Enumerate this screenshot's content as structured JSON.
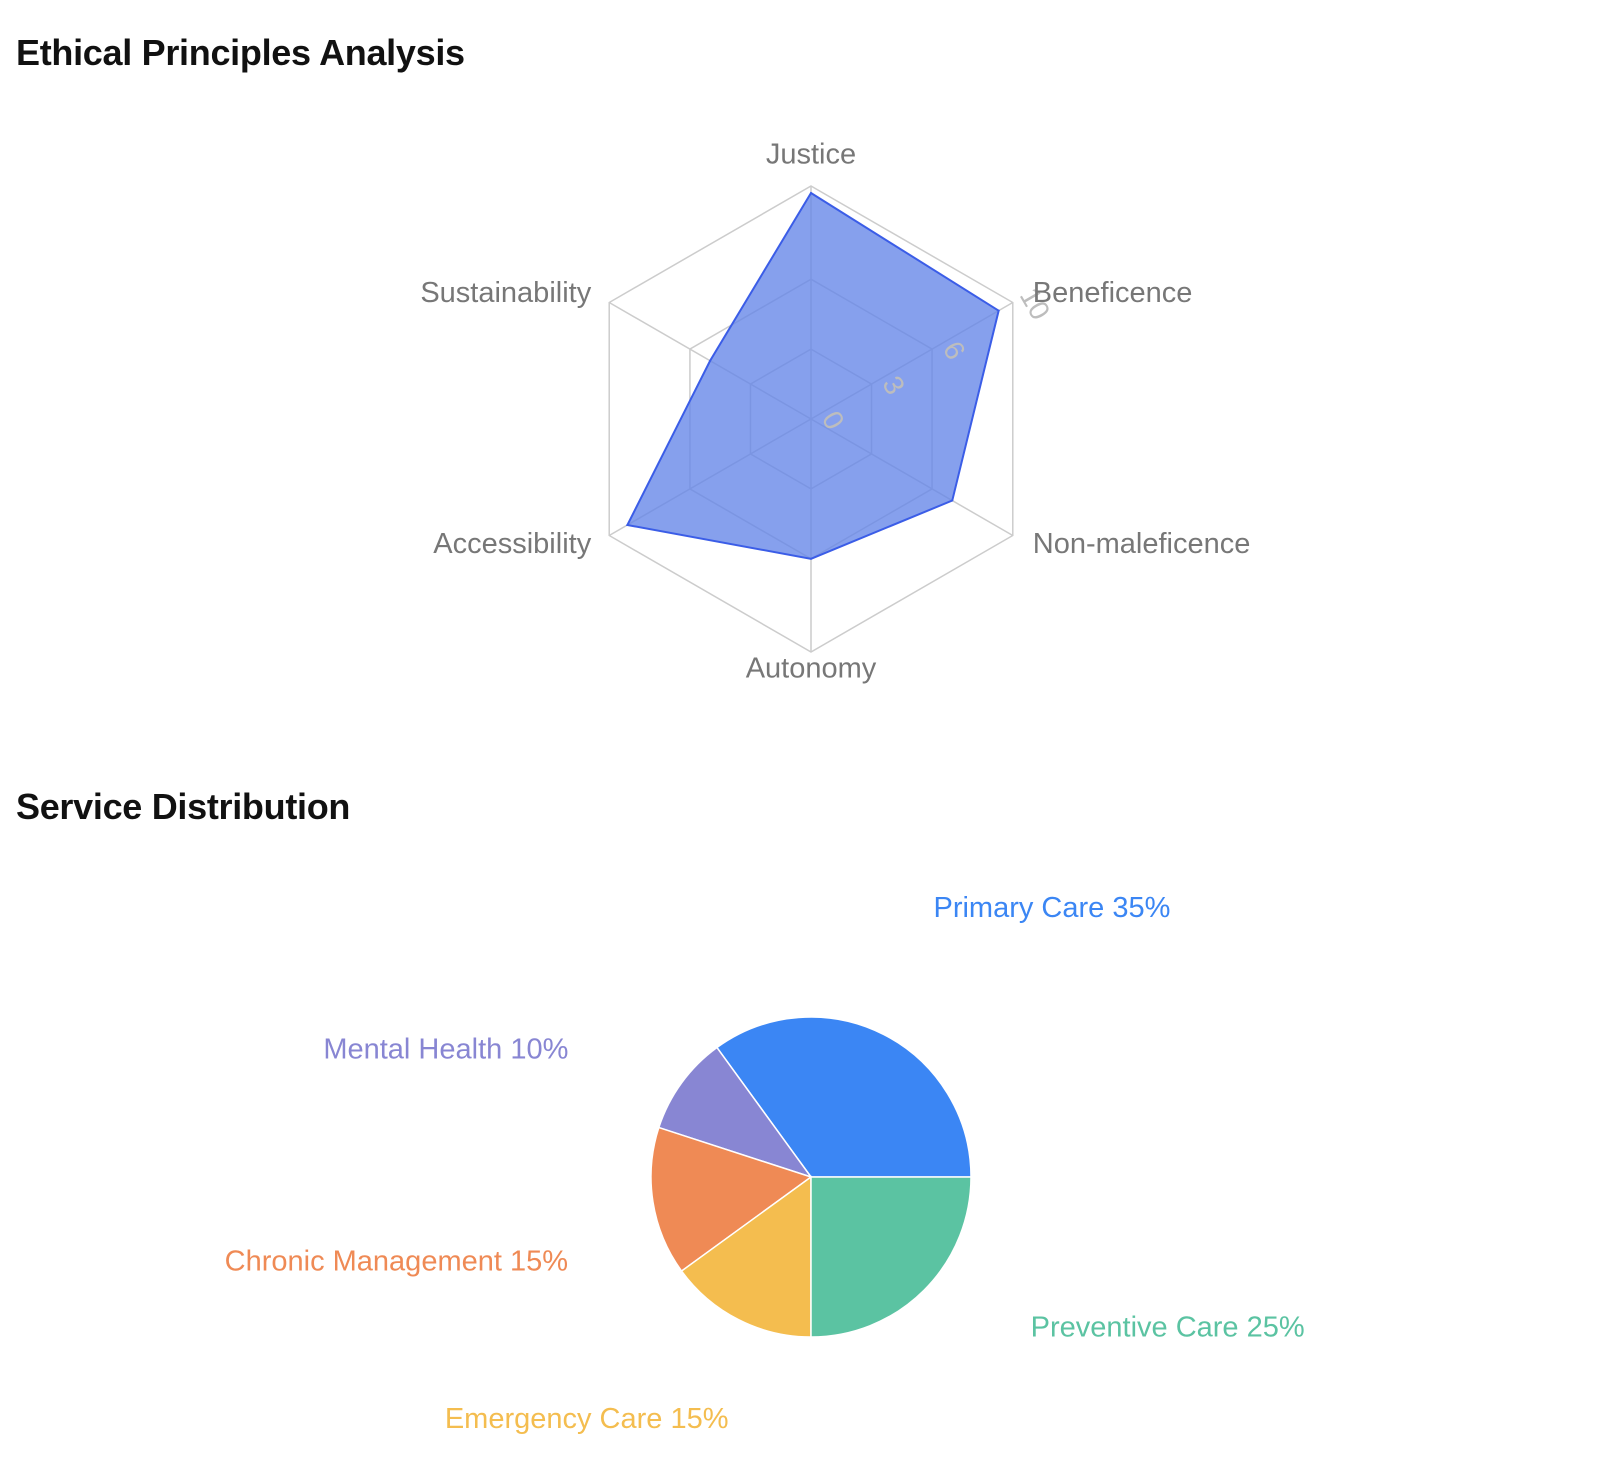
{
  "sections": {
    "radar_title": "Ethical Principles Analysis",
    "pie_title": "Service Distribution"
  },
  "chart_data": [
    {
      "type": "radar",
      "title": "Ethical Principles Analysis",
      "categories": [
        "Justice",
        "Beneficence",
        "Non-maleficence",
        "Autonomy",
        "Accessibility",
        "Sustainability"
      ],
      "values": [
        9.7,
        9.3,
        7.0,
        6.0,
        9.1,
        5.0
      ],
      "tick_values": [
        0,
        3,
        6,
        10
      ],
      "range": [
        0,
        10
      ],
      "fill_color": "#6485e8",
      "stroke_color": "#3b5de7",
      "grid_color": "#cccccc"
    },
    {
      "type": "pie",
      "title": "Service Distribution",
      "slices": [
        {
          "name": "Primary Care",
          "value": 35,
          "label": "Primary Care 35%",
          "color": "#3b86f4"
        },
        {
          "name": "Mental Health",
          "value": 10,
          "label": "Mental Health 10%",
          "color": "#8886d3"
        },
        {
          "name": "Chronic Management",
          "value": 15,
          "label": "Chronic Management 15%",
          "color": "#ef8a55"
        },
        {
          "name": "Emergency Care",
          "value": 15,
          "label": "Emergency Care 15%",
          "color": "#f4bd4f"
        },
        {
          "name": "Preventive Care",
          "value": 25,
          "label": "Preventive Care 25%",
          "color": "#5bc3a2"
        }
      ]
    }
  ]
}
